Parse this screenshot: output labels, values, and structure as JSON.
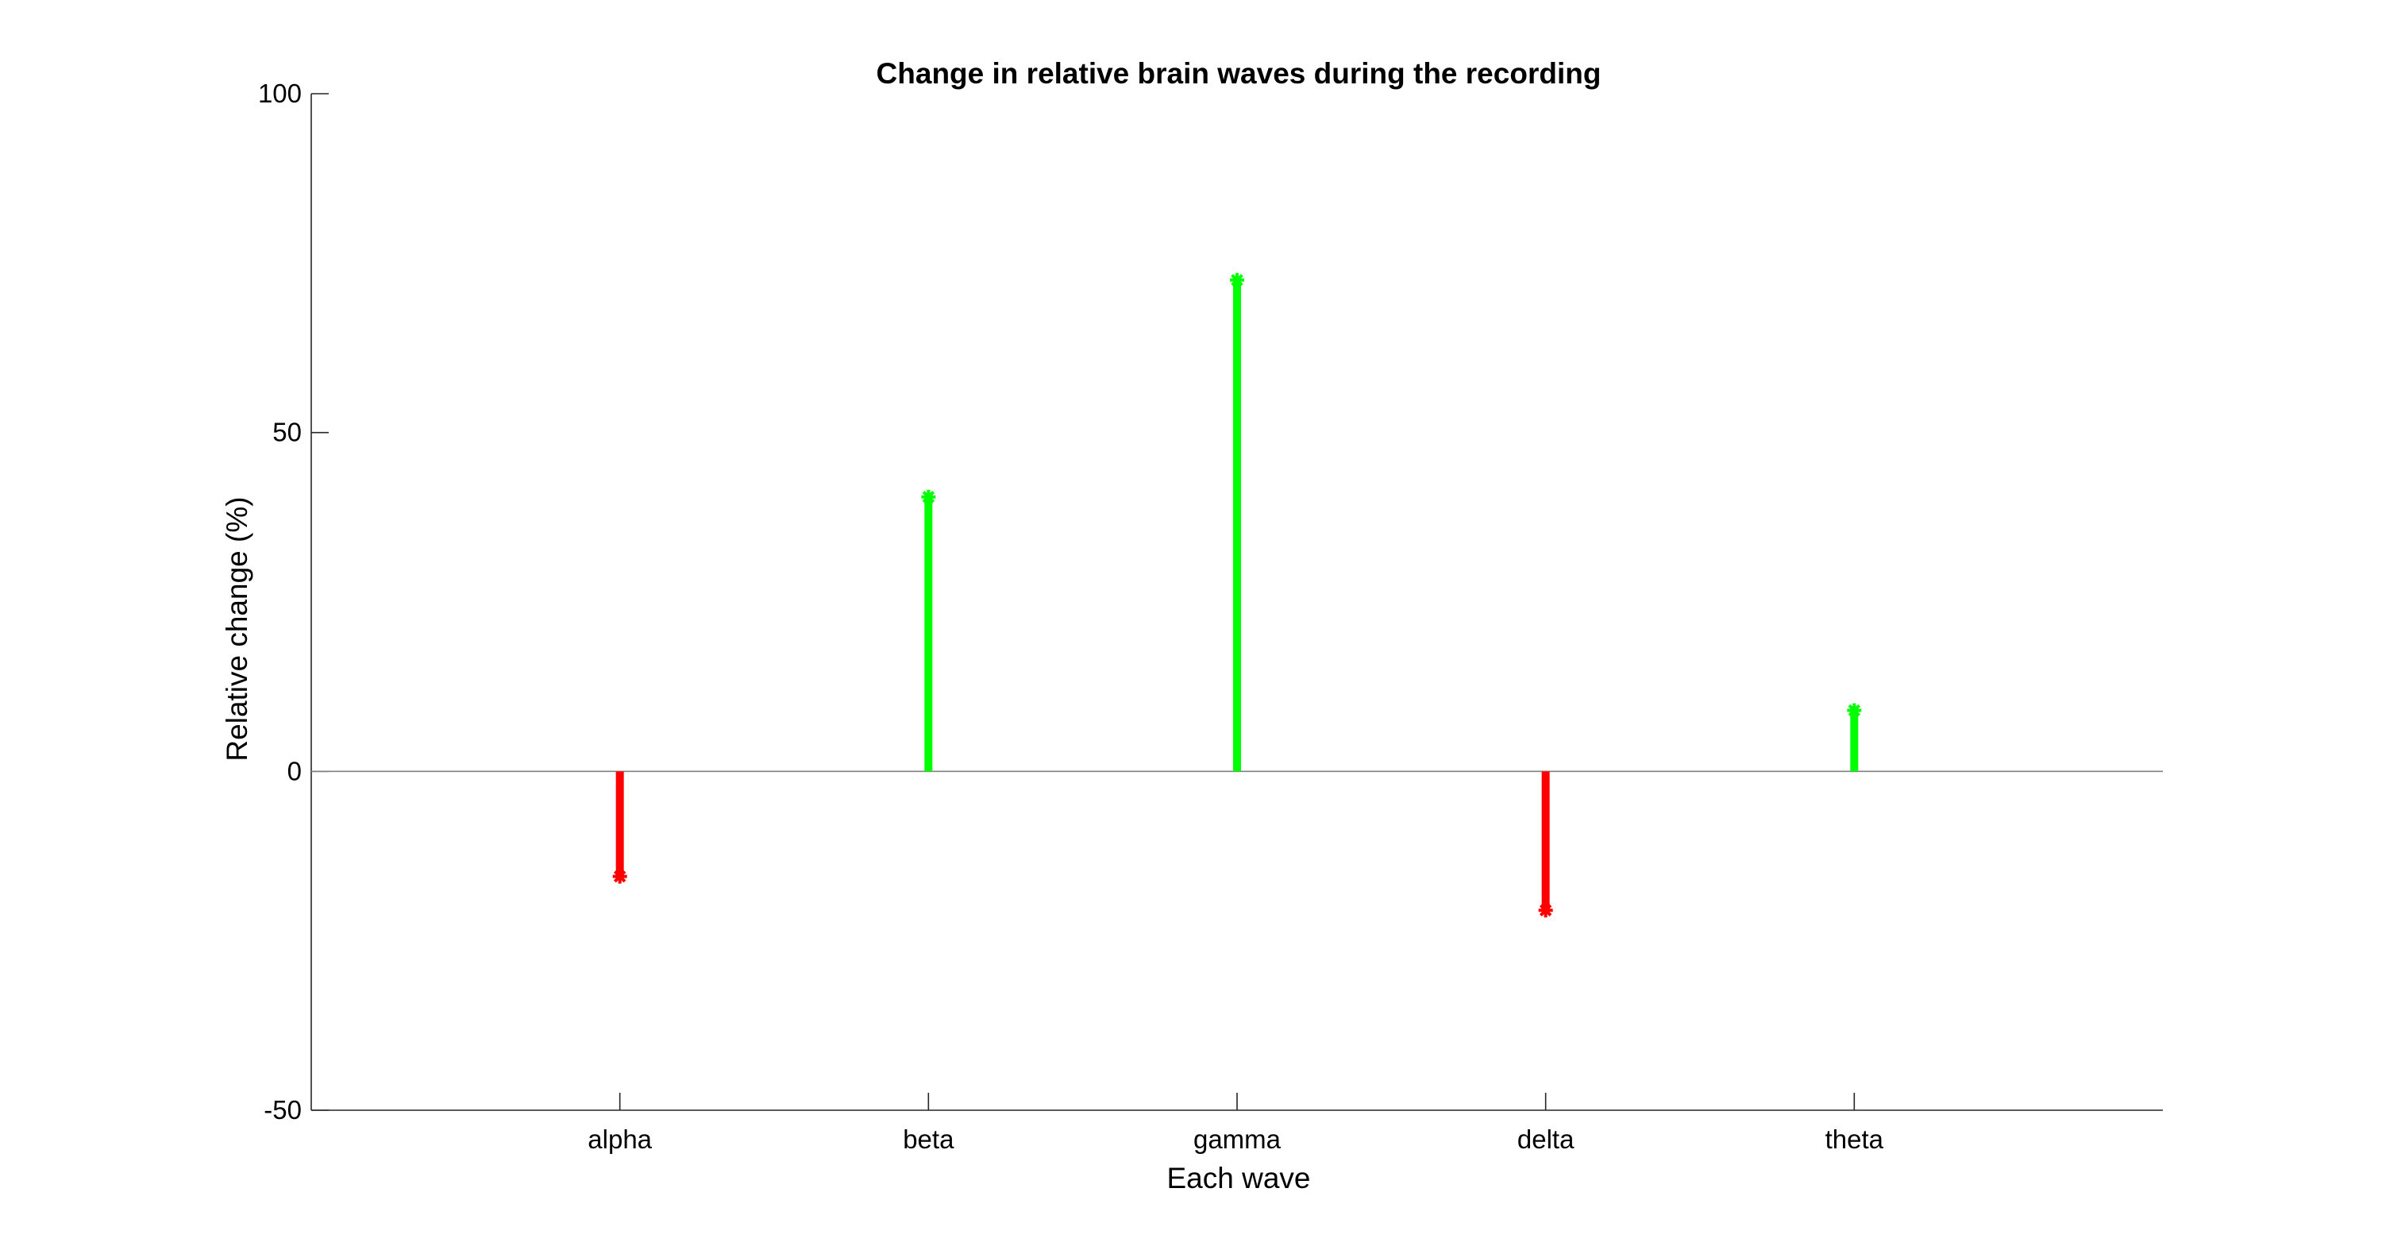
{
  "chart_data": {
    "type": "stem",
    "title": "Change in relative brain waves during the recording",
    "xlabel": "Each wave",
    "ylabel": "Relative change (%)",
    "categories": [
      "alpha",
      "beta",
      "gamma",
      "delta",
      "theta"
    ],
    "values": [
      -15.5,
      40.5,
      72.5,
      -20.5,
      9
    ],
    "ylim": [
      -50,
      100
    ],
    "xlim": [
      0,
      6
    ],
    "yticks": [
      -50,
      0,
      50,
      100
    ],
    "ytick_labels": [
      "-50",
      "0",
      "50",
      "100"
    ],
    "baseline": 0,
    "grid": false,
    "legend": "none",
    "colors": {
      "positive": "#00ff00",
      "negative": "#ff0000",
      "axis": "#262626",
      "baseline": "#808080"
    }
  }
}
